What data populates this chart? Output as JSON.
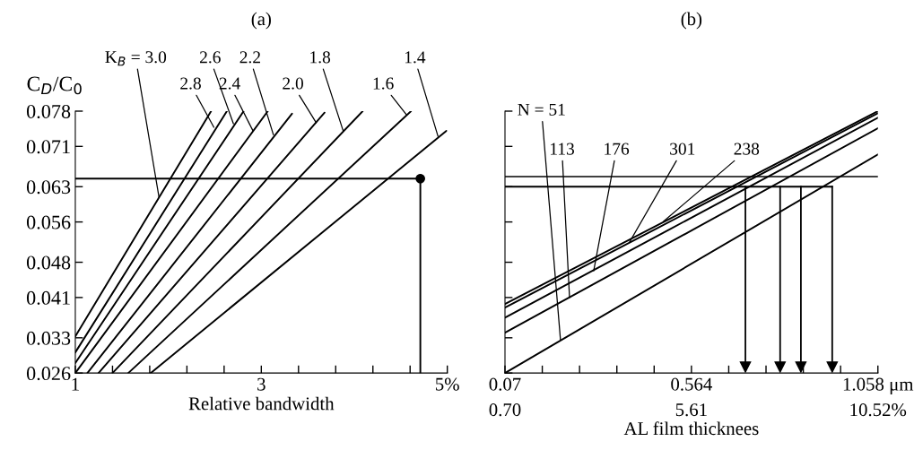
{
  "chart_data": [
    {
      "type": "line",
      "title": "(a)",
      "xlabel": "Relative bandwidth",
      "ylabel": "C$_{D}$/C$_{0}$",
      "xlim": [
        1,
        5
      ],
      "ylim": [
        0.026,
        0.078
      ],
      "xticks": [
        1,
        {
          "value": 1.4,
          "label": null
        },
        {
          "value": 1.8,
          "label": null
        },
        {
          "value": 2.2,
          "label": null
        },
        {
          "value": 2.6,
          "label": null
        },
        3,
        {
          "value": 3.4,
          "label": null
        },
        {
          "value": 3.8,
          "label": null
        },
        {
          "value": 4.2,
          "label": null
        },
        {
          "value": 4.6,
          "label": null
        },
        {
          "value": 5,
          "label": "5%"
        }
      ],
      "yticks": [
        0.026,
        0.033,
        0.041,
        0.048,
        0.056,
        0.063,
        0.071,
        0.078
      ],
      "series": [
        {
          "color": "#000000",
          "x": [
            1.0,
            2.46
          ],
          "values": [
            0.0333,
            0.078
          ]
        },
        {
          "color": "#000000",
          "x": [
            1.0,
            2.63
          ],
          "values": [
            0.0301,
            0.078
          ]
        },
        {
          "color": "#000000",
          "x": [
            1.0,
            2.81
          ],
          "values": [
            0.028,
            0.078
          ]
        },
        {
          "color": "#000000",
          "x": [
            1.0,
            3.07
          ],
          "values": [
            0.026,
            0.078
          ]
        },
        {
          "color": "#000000",
          "x": [
            1.13,
            3.33
          ],
          "values": [
            0.026,
            0.0775
          ]
        },
        {
          "color": "#000000",
          "x": [
            1.25,
            3.68
          ],
          "values": [
            0.026,
            0.0777
          ]
        },
        {
          "color": "#000000",
          "x": [
            1.4,
            4.09
          ],
          "values": [
            0.026,
            0.078
          ]
        },
        {
          "color": "#000000",
          "x": [
            1.57,
            4.61
          ],
          "values": [
            0.026,
            0.078
          ]
        },
        {
          "color": "#000000",
          "x": [
            1.81,
            4.99
          ],
          "values": [
            0.026,
            0.0741
          ]
        },
        {
          "color": "#000000",
          "x": [
            1.0,
            4.71,
            4.71
          ],
          "values": [
            0.0646,
            0.0646,
            0.026
          ]
        },
        {
          "type": "scatter",
          "color": "#000000",
          "marker": "circle",
          "x": [
            4.71
          ],
          "values": [
            0.0646
          ]
        }
      ],
      "annotations": [
        {
          "text": "K$_{B}$ = 3.0",
          "x": 1.9,
          "y": 0.0609
        },
        {
          "text": "2.8",
          "x": 2.49,
          "y": 0.0748
        },
        {
          "text": "2.6",
          "x": 2.7,
          "y": 0.0755
        },
        {
          "text": "2.4",
          "x": 2.91,
          "y": 0.0741
        },
        {
          "text": "2.2",
          "x": 3.13,
          "y": 0.0733
        },
        {
          "text": "2.0",
          "x": 3.59,
          "y": 0.0757
        },
        {
          "text": "1.8",
          "x": 3.88,
          "y": 0.0741
        },
        {
          "text": "1.6",
          "x": 4.56,
          "y": 0.0773
        },
        {
          "text": "1.4",
          "x": 4.9,
          "y": 0.073
        }
      ]
    },
    {
      "type": "line",
      "title": "(b)",
      "xlabel": "AL film thicknees",
      "xlim": [
        0.07,
        1.058
      ],
      "ylim": [
        0.026,
        0.078
      ],
      "tick_labels": "x",
      "xticks": [
        0.07,
        {
          "value": 0.1688,
          "label": null
        },
        {
          "value": 0.2676,
          "label": null
        },
        {
          "value": 0.3664,
          "label": null
        },
        {
          "value": 0.4652,
          "label": null
        },
        0.564,
        {
          "value": 0.6628,
          "label": null
        },
        {
          "value": 0.7616,
          "label": null
        },
        {
          "value": 0.8604,
          "label": null
        },
        {
          "value": 0.9592,
          "label": null
        },
        {
          "value": 1.058,
          "label": "1.058 μm"
        }
      ],
      "x2lim": [
        0.7,
        10.52
      ],
      "x2ticks": [
        {
          "value": 0.7,
          "label": "0.70"
        },
        {
          "value": 5.61,
          "label": "5.61"
        },
        {
          "value": 10.52,
          "label": "10.52%"
        }
      ],
      "yticks": [
        0.026,
        0.033,
        0.041,
        0.048,
        0.056,
        0.063,
        0.071,
        0.078
      ],
      "ref_lines": [
        {
          "axis": "y",
          "value": 0.065,
          "color": "#000000"
        }
      ],
      "series": [
        {
          "color": "#000000",
          "x": [
            0.07,
            1.058
          ],
          "values": [
            0.026,
            0.0694
          ]
        },
        {
          "color": "#000000",
          "x": [
            0.07,
            1.058
          ],
          "values": [
            0.034,
            0.0746
          ]
        },
        {
          "color": "#000000",
          "x": [
            0.07,
            1.058
          ],
          "values": [
            0.037,
            0.0767
          ]
        },
        {
          "color": "#000000",
          "x": [
            0.07,
            1.058
          ],
          "values": [
            0.039,
            0.0776
          ]
        },
        {
          "color": "#000000",
          "x": [
            0.07,
            1.058
          ],
          "values": [
            0.0397,
            0.078
          ]
        },
        {
          "color": "#000000",
          "x": [
            0.07,
            0.937
          ],
          "values": [
            0.063,
            0.063
          ]
        },
        {
          "color": "#000000",
          "marker": "triangle",
          "x": [
            0.707,
            0.707
          ],
          "values": [
            0.063,
            0.0272
          ]
        },
        {
          "color": "#000000",
          "marker": "triangle",
          "x": [
            0.799,
            0.799
          ],
          "values": [
            0.063,
            0.0272
          ]
        },
        {
          "color": "#000000",
          "marker": "triangle",
          "x": [
            0.854,
            0.854
          ],
          "values": [
            0.063,
            0.0272
          ]
        },
        {
          "color": "#000000",
          "marker": "triangle",
          "x": [
            0.937,
            0.937
          ],
          "values": [
            0.063,
            0.0272
          ]
        }
      ],
      "annotations": [
        {
          "text": "N = 51",
          "x": 0.217,
          "y": 0.0326
        },
        {
          "text": "113",
          "x": 0.241,
          "y": 0.041
        },
        {
          "text": "176",
          "x": 0.305,
          "y": 0.0463
        },
        {
          "text": "301",
          "x": 0.4,
          "y": 0.052
        },
        {
          "text": "238",
          "x": 0.49,
          "y": 0.0561
        }
      ]
    }
  ]
}
